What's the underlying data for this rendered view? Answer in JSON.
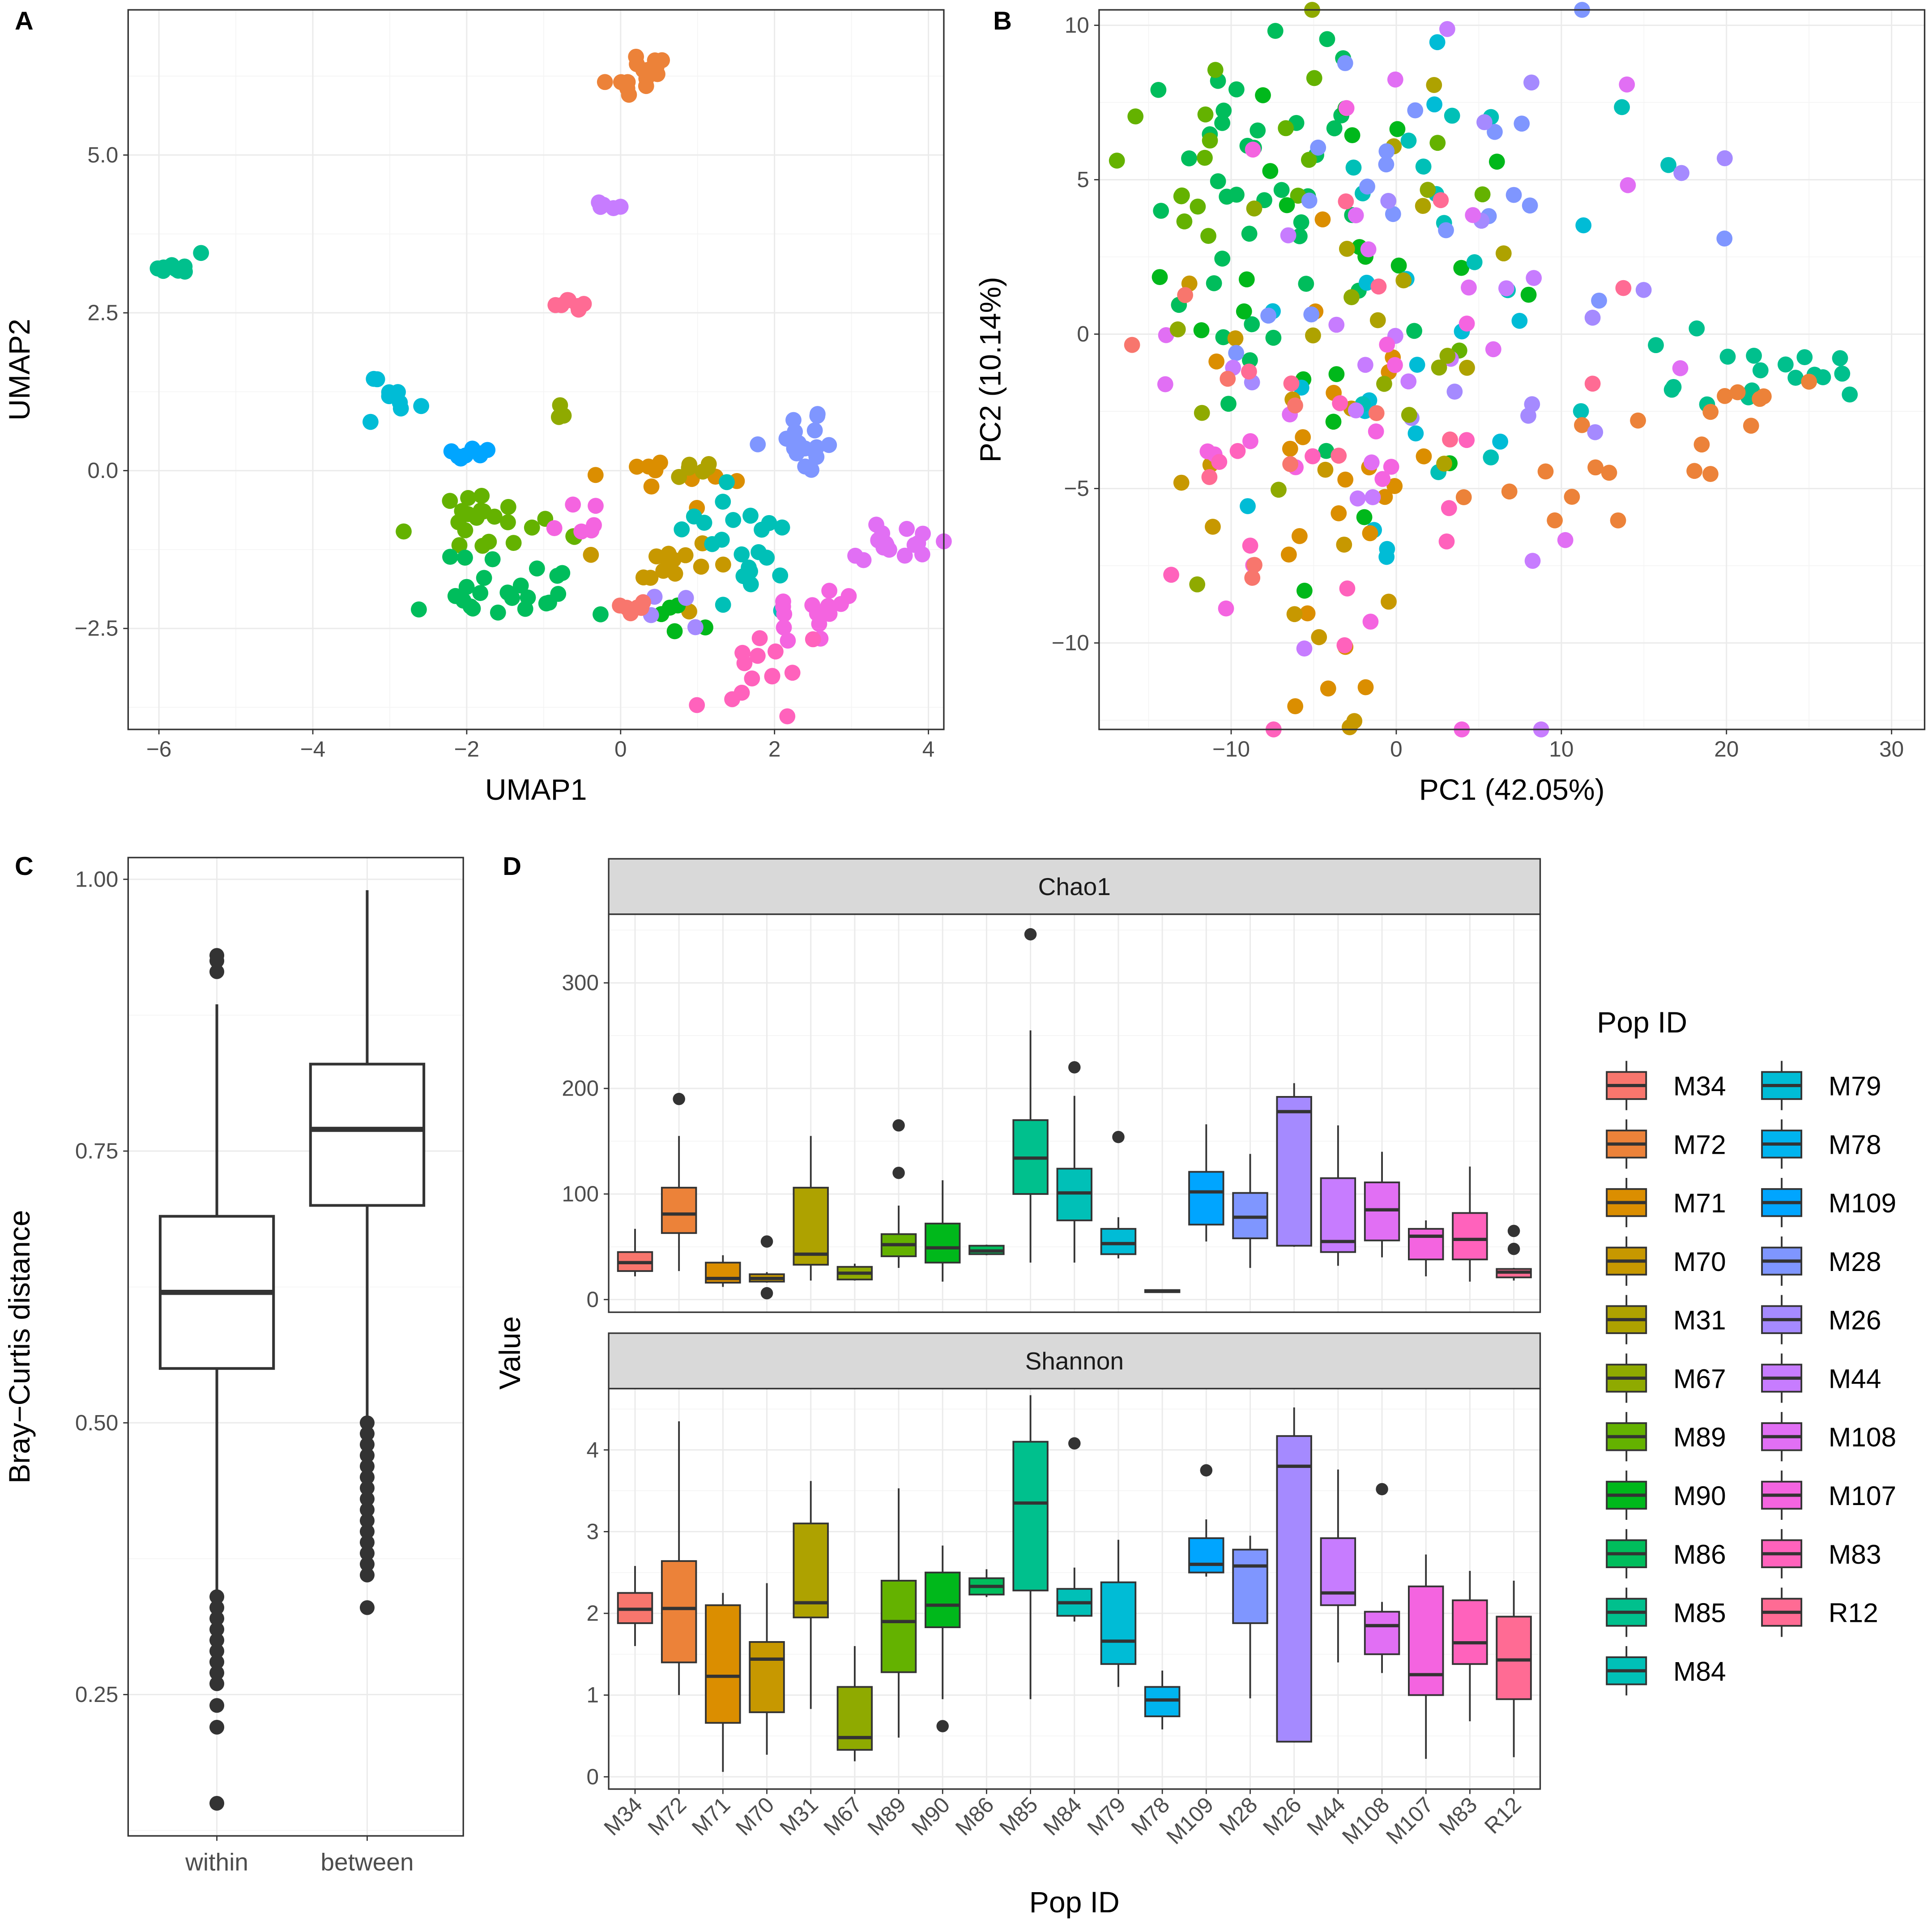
{
  "figure": {
    "pop_colors": {
      "M34": "#F8766D",
      "M72": "#EC8239",
      "M71": "#DB8E00",
      "M70": "#C79800",
      "M31": "#AEA200",
      "M67": "#8FAA00",
      "M89": "#64B200",
      "M90": "#00B81B",
      "M86": "#00BD5C",
      "M85": "#00C08D",
      "M84": "#00C0B7",
      "M79": "#00BCD6",
      "M78": "#00B4EF",
      "M109": "#00A5FF",
      "M28": "#7F96FF",
      "M26": "#A58AFF",
      "M44": "#C77CFF",
      "M108": "#E16FF4",
      "M107": "#F464E0",
      "M83": "#FF62BC",
      "R12": "#FF6B94"
    },
    "legend": {
      "title": "Pop ID",
      "items": [
        "M34",
        "M72",
        "M71",
        "M70",
        "M31",
        "M67",
        "M89",
        "M90",
        "M86",
        "M85",
        "M84",
        "M79",
        "M78",
        "M109",
        "M28",
        "M26",
        "M44",
        "M108",
        "M107",
        "M83",
        "R12"
      ]
    }
  },
  "chart_data": [
    {
      "panel": "A",
      "type": "scatter",
      "xlabel": "UMAP1",
      "ylabel": "UMAP2",
      "xlim": [
        -6.4,
        4.2
      ],
      "ylim": [
        -4.1,
        7.3
      ],
      "xticks": [
        -6,
        -4,
        -2,
        0,
        2,
        4
      ],
      "yticks": [
        -2.5,
        0.0,
        2.5,
        5.0
      ],
      "xtick_labels": [
        "−6",
        "−4",
        "−2",
        "0",
        "2",
        "4"
      ],
      "ytick_labels": [
        "−2.5",
        "0.0",
        "2.5",
        "5.0"
      ],
      "clusters": [
        {
          "group": "M72",
          "cx": 0.25,
          "cy": 6.3,
          "sx": 0.18,
          "sy": 0.2,
          "n": 18
        },
        {
          "group": "M44",
          "cx": -0.15,
          "cy": 4.2,
          "sx": 0.1,
          "sy": 0.06,
          "n": 5
        },
        {
          "group": "M85",
          "cx": -5.8,
          "cy": 3.25,
          "sx": 0.15,
          "sy": 0.1,
          "n": 9
        },
        {
          "group": "R12",
          "cx": -0.65,
          "cy": 2.7,
          "sx": 0.12,
          "sy": 0.1,
          "n": 7
        },
        {
          "group": "M79",
          "cx": -2.95,
          "cy": 1.05,
          "sx": 0.15,
          "sy": 0.25,
          "n": 9
        },
        {
          "group": "M67",
          "cx": -0.8,
          "cy": 0.9,
          "sx": 0.06,
          "sy": 0.05,
          "n": 4
        },
        {
          "group": "M109",
          "cx": -1.95,
          "cy": 0.3,
          "sx": 0.2,
          "sy": 0.08,
          "n": 8
        },
        {
          "group": "M28",
          "cx": 2.4,
          "cy": 0.4,
          "sx": 0.25,
          "sy": 0.25,
          "n": 18
        },
        {
          "group": "M89",
          "cx": -1.7,
          "cy": -0.8,
          "sx": 0.5,
          "sy": 0.25,
          "n": 22
        },
        {
          "group": "M86",
          "cx": -1.5,
          "cy": -1.9,
          "sx": 0.5,
          "sy": 0.35,
          "n": 24
        },
        {
          "group": "M71",
          "cx": 0.6,
          "cy": -0.2,
          "sx": 0.4,
          "sy": 0.25,
          "n": 10
        },
        {
          "group": "M70",
          "cx": 0.6,
          "cy": -1.6,
          "sx": 0.35,
          "sy": 0.3,
          "n": 14
        },
        {
          "group": "M31",
          "cx": 1.0,
          "cy": 0.1,
          "sx": 0.25,
          "sy": 0.12,
          "n": 6
        },
        {
          "group": "M84",
          "cx": 1.6,
          "cy": -1.2,
          "sx": 0.45,
          "sy": 0.55,
          "n": 22
        },
        {
          "group": "M90",
          "cx": 0.8,
          "cy": -2.3,
          "sx": 0.25,
          "sy": 0.2,
          "n": 5
        },
        {
          "group": "M108",
          "cx": 3.6,
          "cy": -1.1,
          "sx": 0.35,
          "sy": 0.15,
          "n": 18
        },
        {
          "group": "M107",
          "cx": 2.5,
          "cy": -2.2,
          "sx": 0.3,
          "sy": 0.2,
          "n": 14
        },
        {
          "group": "M83",
          "cx": 1.8,
          "cy": -3.2,
          "sx": 0.3,
          "sy": 0.3,
          "n": 14
        },
        {
          "group": "M26",
          "cx": 0.5,
          "cy": -2.3,
          "sx": 0.3,
          "sy": 0.2,
          "n": 5
        },
        {
          "group": "M34",
          "cx": 0.1,
          "cy": -2.2,
          "sx": 0.15,
          "sy": 0.08,
          "n": 6
        },
        {
          "group": "M107",
          "cx": -0.5,
          "cy": -0.8,
          "sx": 0.2,
          "sy": 0.2,
          "n": 6
        }
      ]
    },
    {
      "panel": "B",
      "type": "scatter",
      "xlabel": "PC1 (42.05%)",
      "ylabel": "PC2 (10.14%)",
      "xlim": [
        -18,
        32
      ],
      "ylim": [
        -12.8,
        10.5
      ],
      "xticks": [
        -10,
        0,
        10,
        20,
        30
      ],
      "yticks": [
        -10,
        -5,
        0,
        5,
        10
      ],
      "xtick_labels": [
        "−10",
        "0",
        "10",
        "20",
        "30"
      ],
      "ytick_labels": [
        "−10",
        "−5",
        "0",
        "5",
        "10"
      ],
      "clusters": [
        {
          "group": "M86",
          "cx": -9,
          "cy": 4,
          "sx": 4.5,
          "sy": 3,
          "n": 40
        },
        {
          "group": "M89",
          "cx": -8,
          "cy": 6,
          "sx": 5,
          "sy": 2.5,
          "n": 18
        },
        {
          "group": "M90",
          "cx": -4,
          "cy": 2,
          "sx": 5,
          "sy": 4,
          "n": 22
        },
        {
          "group": "M79",
          "cx": -1,
          "cy": -1,
          "sx": 5,
          "sy": 4,
          "n": 18
        },
        {
          "group": "M84",
          "cx": 4,
          "cy": 3,
          "sx": 6,
          "sy": 4,
          "n": 16
        },
        {
          "group": "M85",
          "cx": 20,
          "cy": -1.3,
          "sx": 4,
          "sy": 1,
          "n": 18
        },
        {
          "group": "M72",
          "cx": 11,
          "cy": -4,
          "sx": 4,
          "sy": 1.2,
          "n": 14
        },
        {
          "group": "M72",
          "cx": 20,
          "cy": -2,
          "sx": 3,
          "sy": 0.5,
          "n": 6
        },
        {
          "group": "M71",
          "cx": -5,
          "cy": -5,
          "sx": 4,
          "sy": 3.5,
          "n": 22
        },
        {
          "group": "M70",
          "cx": -7,
          "cy": -4,
          "sx": 4,
          "sy": 4,
          "n": 14
        },
        {
          "group": "M31",
          "cx": 3,
          "cy": 0,
          "sx": 7,
          "sy": 4,
          "n": 10
        },
        {
          "group": "M28",
          "cx": 0,
          "cy": 5,
          "sx": 7,
          "sy": 3,
          "n": 20
        },
        {
          "group": "M26",
          "cx": 10,
          "cy": 1,
          "sx": 7,
          "sy": 4,
          "n": 14
        },
        {
          "group": "M44",
          "cx": -2,
          "cy": -3,
          "sx": 6,
          "sy": 4,
          "n": 16
        },
        {
          "group": "M108",
          "cx": 2,
          "cy": 1,
          "sx": 7,
          "sy": 4,
          "n": 14
        },
        {
          "group": "M107",
          "cx": -4,
          "cy": -1,
          "sx": 6,
          "sy": 5,
          "n": 16
        },
        {
          "group": "M83",
          "cx": -4,
          "cy": -7,
          "sx": 5,
          "sy": 4,
          "n": 12
        },
        {
          "group": "M34",
          "cx": -10,
          "cy": -3,
          "sx": 5,
          "sy": 3,
          "n": 8
        },
        {
          "group": "M67",
          "cx": -8,
          "cy": -2,
          "sx": 6,
          "sy": 4,
          "n": 12
        },
        {
          "group": "R12",
          "cx": 2,
          "cy": -1,
          "sx": 7,
          "sy": 4,
          "n": 10
        }
      ]
    },
    {
      "panel": "C",
      "type": "box",
      "ylabel": "Bray−Curtis distance",
      "ylim": [
        0.12,
        1.02
      ],
      "yticks": [
        0.25,
        0.5,
        0.75,
        1.0
      ],
      "ytick_labels": [
        "0.25",
        "0.50",
        "0.75",
        "1.00"
      ],
      "categories": [
        "within",
        "between"
      ],
      "boxes": [
        {
          "q1": 0.55,
          "median": 0.62,
          "q3": 0.69,
          "lo": 0.34,
          "hi": 0.885,
          "outliers": [
            0.15,
            0.22,
            0.24,
            0.26,
            0.27,
            0.28,
            0.29,
            0.3,
            0.31,
            0.32,
            0.33,
            0.34,
            0.915,
            0.925,
            0.93
          ]
        },
        {
          "q1": 0.7,
          "median": 0.77,
          "q3": 0.83,
          "lo": 0.5,
          "hi": 0.99,
          "outliers": [
            0.33,
            0.36,
            0.37,
            0.38,
            0.39,
            0.4,
            0.41,
            0.42,
            0.43,
            0.44,
            0.45,
            0.46,
            0.47,
            0.48,
            0.49,
            0.5
          ]
        }
      ]
    },
    {
      "panel": "D",
      "type": "box",
      "xlabel": "Pop ID",
      "ylabel": "Value",
      "categories": [
        "M34",
        "M72",
        "M71",
        "M70",
        "M31",
        "M67",
        "M89",
        "M90",
        "M86",
        "M85",
        "M84",
        "M79",
        "M78",
        "M109",
        "M28",
        "M26",
        "M44",
        "M108",
        "M107",
        "M83",
        "R12"
      ],
      "facets": [
        {
          "title": "Chao1",
          "ylim": [
            -12,
            365
          ],
          "yticks": [
            0,
            100,
            200,
            300
          ],
          "ytick_labels": [
            "0",
            "100",
            "200",
            "300"
          ],
          "boxes": [
            {
              "lo": 22,
              "q1": 27,
              "median": 35,
              "q3": 45,
              "hi": 67,
              "outliers": []
            },
            {
              "lo": 27,
              "q1": 63,
              "median": 81,
              "q3": 106,
              "hi": 155,
              "outliers": [
                190
              ]
            },
            {
              "lo": 12,
              "q1": 16,
              "median": 20,
              "q3": 35,
              "hi": 42,
              "outliers": []
            },
            {
              "lo": 16,
              "q1": 17,
              "median": 20,
              "q3": 24,
              "hi": 26,
              "outliers": [
                6,
                55
              ]
            },
            {
              "lo": 18,
              "q1": 33,
              "median": 43,
              "q3": 106,
              "hi": 155,
              "outliers": []
            },
            {
              "lo": 18,
              "q1": 19,
              "median": 25,
              "q3": 31,
              "hi": 34,
              "outliers": []
            },
            {
              "lo": 30,
              "q1": 41,
              "median": 52,
              "q3": 62,
              "hi": 89,
              "outliers": [
                120,
                165
              ]
            },
            {
              "lo": 17,
              "q1": 35,
              "median": 49,
              "q3": 72,
              "hi": 113,
              "outliers": []
            },
            {
              "lo": 42,
              "q1": 43,
              "median": 46,
              "q3": 51,
              "hi": 52,
              "outliers": []
            },
            {
              "lo": 35,
              "q1": 100,
              "median": 134,
              "q3": 170,
              "hi": 255,
              "outliers": [
                346
              ]
            },
            {
              "lo": 35,
              "q1": 75,
              "median": 101,
              "q3": 124,
              "hi": 193,
              "outliers": [
                220
              ]
            },
            {
              "lo": 39,
              "q1": 43,
              "median": 53,
              "q3": 67,
              "hi": 78,
              "outliers": [
                154
              ]
            },
            {
              "lo": 7,
              "q1": 7,
              "median": 8,
              "q3": 9,
              "hi": 9,
              "outliers": []
            },
            {
              "lo": 55,
              "q1": 71,
              "median": 102,
              "q3": 121,
              "hi": 166,
              "outliers": []
            },
            {
              "lo": 30,
              "q1": 58,
              "median": 78,
              "q3": 101,
              "hi": 138,
              "outliers": []
            },
            {
              "lo": 50,
              "q1": 51,
              "median": 178,
              "q3": 192,
              "hi": 205,
              "outliers": []
            },
            {
              "lo": 32,
              "q1": 45,
              "median": 55,
              "q3": 115,
              "hi": 165,
              "outliers": []
            },
            {
              "lo": 40,
              "q1": 56,
              "median": 85,
              "q3": 111,
              "hi": 140,
              "outliers": []
            },
            {
              "lo": 22,
              "q1": 38,
              "median": 60,
              "q3": 67,
              "hi": 75,
              "outliers": []
            },
            {
              "lo": 17,
              "q1": 38,
              "median": 57,
              "q3": 82,
              "hi": 126,
              "outliers": []
            },
            {
              "lo": 18,
              "q1": 21,
              "median": 26,
              "q3": 29,
              "hi": 30,
              "outliers": [
                48,
                65
              ]
            }
          ]
        },
        {
          "title": "Shannon",
          "ylim": [
            -0.15,
            4.75
          ],
          "yticks": [
            0,
            1,
            2,
            3,
            4
          ],
          "ytick_labels": [
            "0",
            "1",
            "2",
            "3",
            "4"
          ],
          "boxes": [
            {
              "lo": 1.6,
              "q1": 1.88,
              "median": 2.05,
              "q3": 2.25,
              "hi": 2.58,
              "outliers": []
            },
            {
              "lo": 1.0,
              "q1": 1.4,
              "median": 2.06,
              "q3": 2.64,
              "hi": 4.35,
              "outliers": []
            },
            {
              "lo": 0.06,
              "q1": 0.66,
              "median": 1.23,
              "q3": 2.1,
              "hi": 2.25,
              "outliers": []
            },
            {
              "lo": 0.27,
              "q1": 0.79,
              "median": 1.44,
              "q3": 1.65,
              "hi": 2.37,
              "outliers": []
            },
            {
              "lo": 0.83,
              "q1": 1.95,
              "median": 2.13,
              "q3": 3.1,
              "hi": 3.62,
              "outliers": []
            },
            {
              "lo": 0.19,
              "q1": 0.33,
              "median": 0.48,
              "q3": 1.1,
              "hi": 1.6,
              "outliers": []
            },
            {
              "lo": 0.48,
              "q1": 1.28,
              "median": 1.9,
              "q3": 2.4,
              "hi": 3.53,
              "outliers": []
            },
            {
              "lo": 0.95,
              "q1": 1.83,
              "median": 2.1,
              "q3": 2.5,
              "hi": 2.83,
              "outliers": [
                0.62
              ]
            },
            {
              "lo": 2.2,
              "q1": 2.23,
              "median": 2.33,
              "q3": 2.43,
              "hi": 2.54,
              "outliers": []
            },
            {
              "lo": 0.95,
              "q1": 2.28,
              "median": 3.35,
              "q3": 4.1,
              "hi": 4.67,
              "outliers": []
            },
            {
              "lo": 1.9,
              "q1": 1.97,
              "median": 2.13,
              "q3": 2.3,
              "hi": 2.56,
              "outliers": [
                4.08
              ]
            },
            {
              "lo": 1.1,
              "q1": 1.38,
              "median": 1.66,
              "q3": 2.38,
              "hi": 2.9,
              "outliers": []
            },
            {
              "lo": 0.58,
              "q1": 0.74,
              "median": 0.94,
              "q3": 1.1,
              "hi": 1.3,
              "outliers": []
            },
            {
              "lo": 2.45,
              "q1": 2.5,
              "median": 2.6,
              "q3": 2.92,
              "hi": 3.15,
              "outliers": [
                3.75
              ]
            },
            {
              "lo": 0.96,
              "q1": 1.88,
              "median": 2.58,
              "q3": 2.78,
              "hi": 2.95,
              "outliers": []
            },
            {
              "lo": 0.42,
              "q1": 0.43,
              "median": 3.8,
              "q3": 4.17,
              "hi": 4.52,
              "outliers": []
            },
            {
              "lo": 1.4,
              "q1": 2.1,
              "median": 2.25,
              "q3": 2.92,
              "hi": 3.76,
              "outliers": []
            },
            {
              "lo": 1.27,
              "q1": 1.5,
              "median": 1.85,
              "q3": 2.02,
              "hi": 2.14,
              "outliers": [
                3.52
              ]
            },
            {
              "lo": 0.22,
              "q1": 1.0,
              "median": 1.25,
              "q3": 2.33,
              "hi": 2.72,
              "outliers": []
            },
            {
              "lo": 0.68,
              "q1": 1.38,
              "median": 1.64,
              "q3": 2.16,
              "hi": 2.52,
              "outliers": []
            },
            {
              "lo": 0.24,
              "q1": 0.95,
              "median": 1.43,
              "q3": 1.96,
              "hi": 2.4,
              "outliers": []
            }
          ]
        }
      ]
    }
  ]
}
